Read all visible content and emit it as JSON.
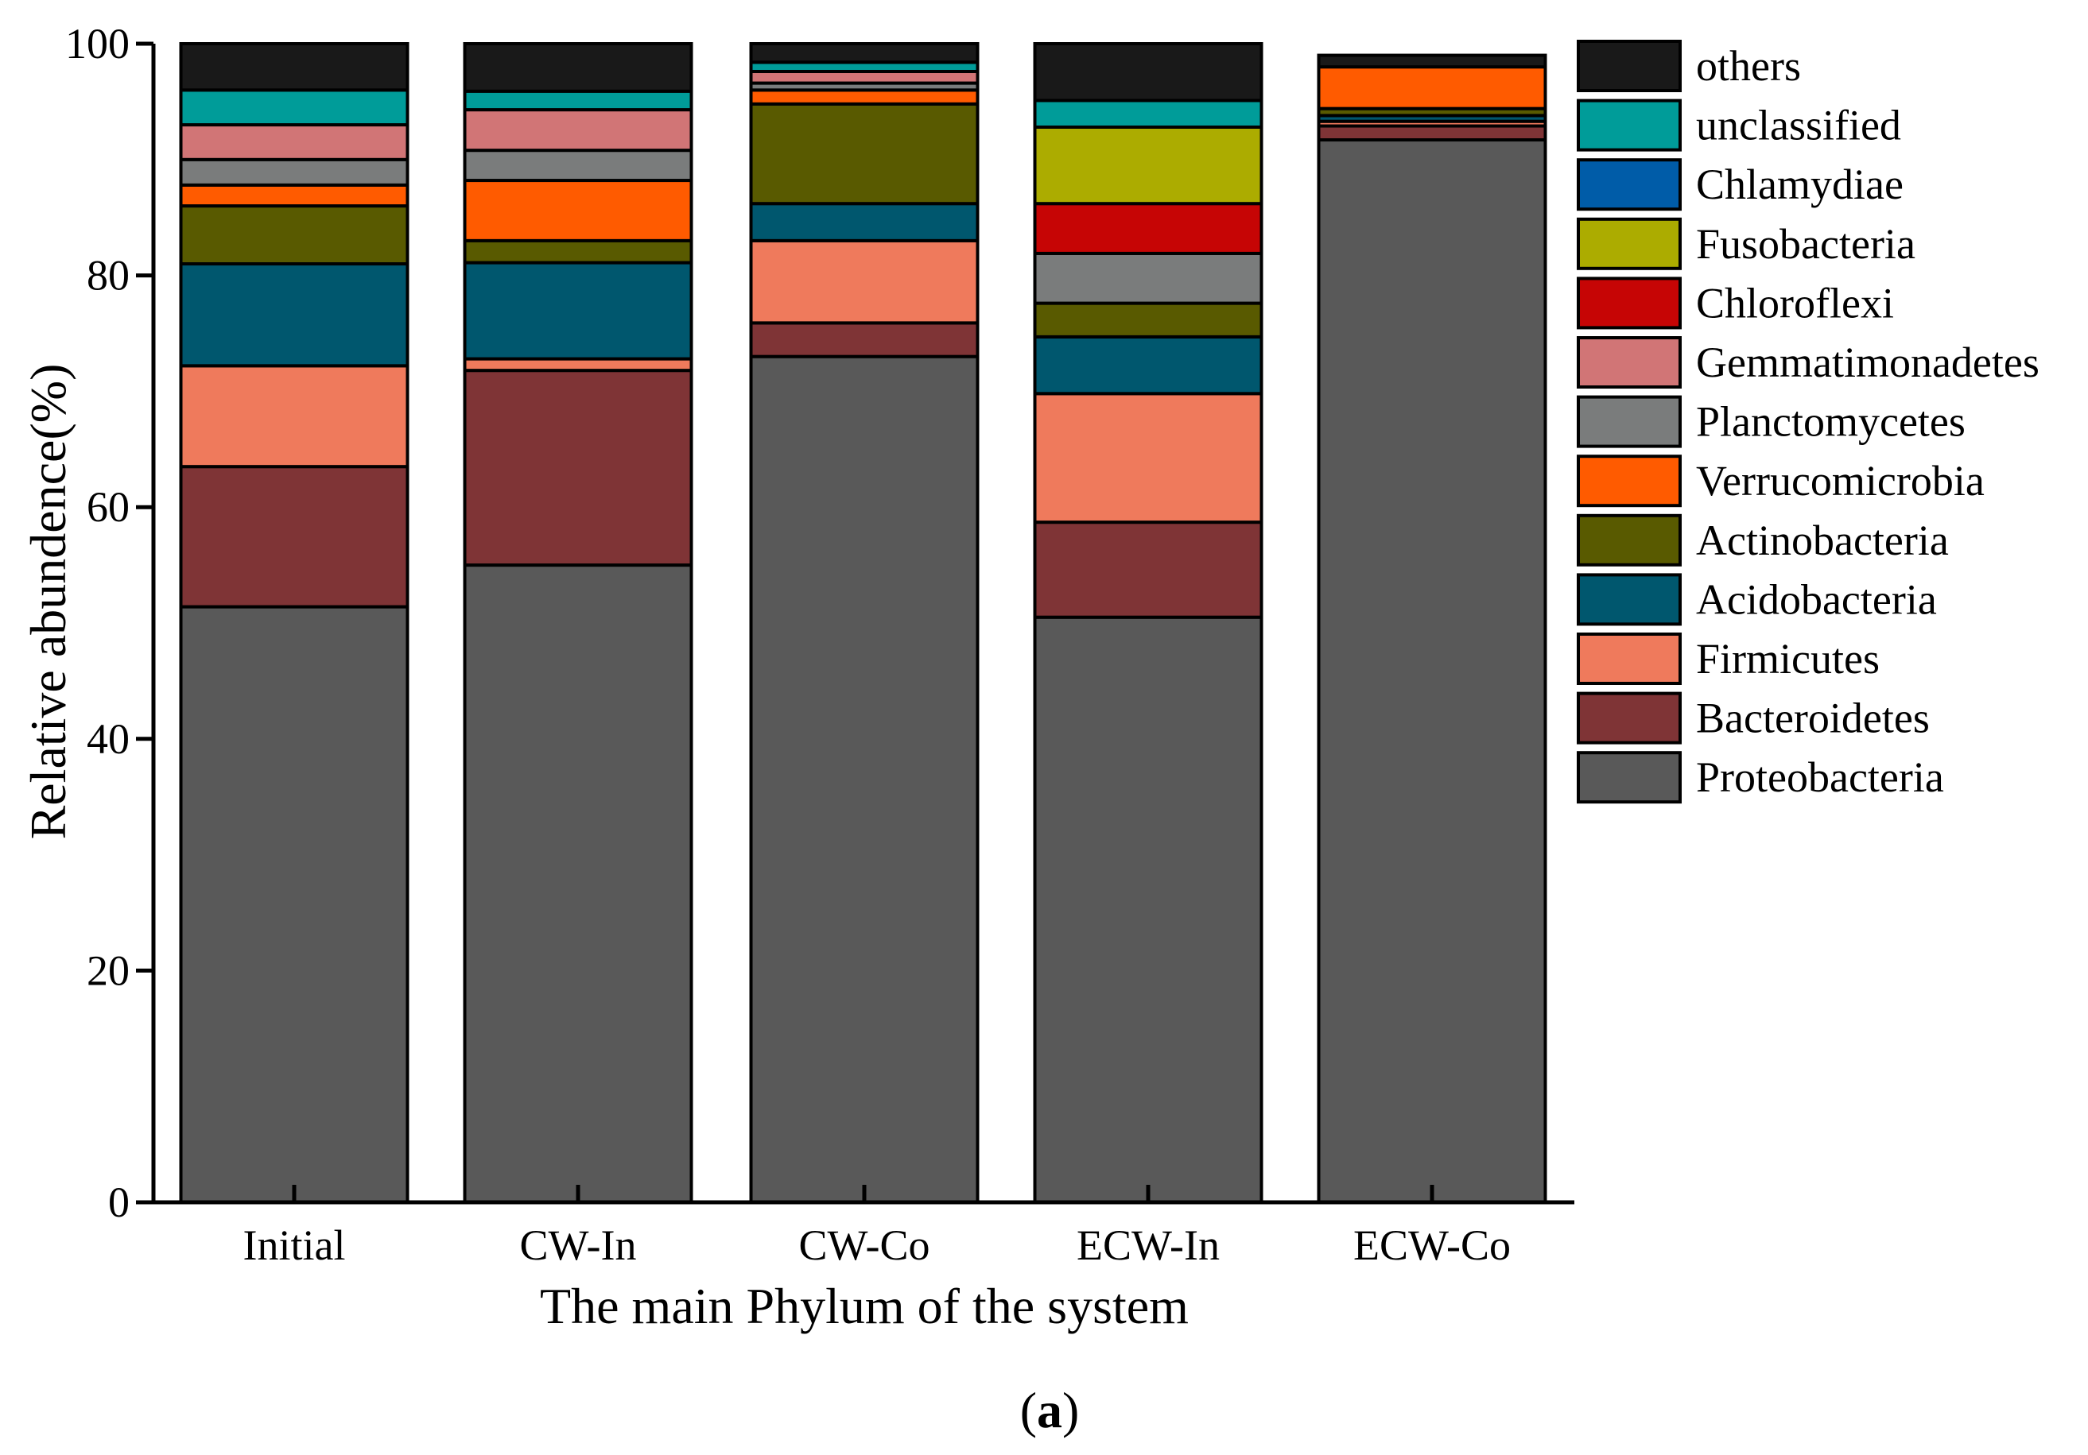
{
  "chart_data": {
    "type": "bar",
    "stacked": true,
    "title": "",
    "xlabel": "The main Phylum of the system",
    "ylabel": "Relative abundence(%)",
    "panel_label": "a",
    "ylim": [
      0,
      100
    ],
    "yticks": [
      0,
      20,
      40,
      60,
      80,
      100
    ],
    "legend_position": "right",
    "categories": [
      "Initial",
      "CW-In",
      "CW-Co",
      "ECW-In",
      "ECW-Co"
    ],
    "series": [
      {
        "name": "Proteobacteria",
        "color": "#595959",
        "values": [
          51.4,
          55.0,
          73.0,
          50.5,
          91.7
        ]
      },
      {
        "name": "Bacteroidetes",
        "color": "#7f3436",
        "values": [
          12.1,
          16.8,
          2.9,
          8.2,
          1.2
        ]
      },
      {
        "name": "Firmicutes",
        "color": "#ef7a5c",
        "values": [
          8.7,
          1.0,
          7.1,
          11.1,
          0.4
        ]
      },
      {
        "name": "Acidobacteria",
        "color": "#00576e",
        "values": [
          8.8,
          8.3,
          3.2,
          4.9,
          0.5
        ]
      },
      {
        "name": "Actinobacteria",
        "color": "#595a00",
        "values": [
          5.0,
          1.9,
          8.6,
          2.9,
          0.6
        ]
      },
      {
        "name": "Verrucomicrobia",
        "color": "#ff5b00",
        "values": [
          1.8,
          5.2,
          1.2,
          0.0,
          3.6
        ]
      },
      {
        "name": "Planctomycetes",
        "color": "#7a7c7c",
        "values": [
          2.2,
          2.6,
          0.6,
          4.3,
          0.0
        ]
      },
      {
        "name": "Gemmatimonadetes",
        "color": "#d17576",
        "values": [
          3.0,
          3.5,
          1.0,
          0.0,
          0.0
        ]
      },
      {
        "name": "Chloroflexi",
        "color": "#c60505",
        "values": [
          0.0,
          0.0,
          0.0,
          4.3,
          0.0
        ]
      },
      {
        "name": "Fusobacteria",
        "color": "#acac00",
        "values": [
          0.0,
          0.0,
          0.0,
          6.6,
          0.0
        ]
      },
      {
        "name": "Chlamydiae",
        "color": "#005ca8",
        "values": [
          0.0,
          0.0,
          0.0,
          0.0,
          0.0
        ]
      },
      {
        "name": "unclassified",
        "color": "#009c99",
        "values": [
          3.0,
          1.6,
          0.8,
          2.3,
          0.0
        ]
      },
      {
        "name": "others",
        "color": "#191919",
        "values": [
          4.0,
          4.1,
          1.6,
          4.9,
          1.0
        ]
      }
    ]
  }
}
